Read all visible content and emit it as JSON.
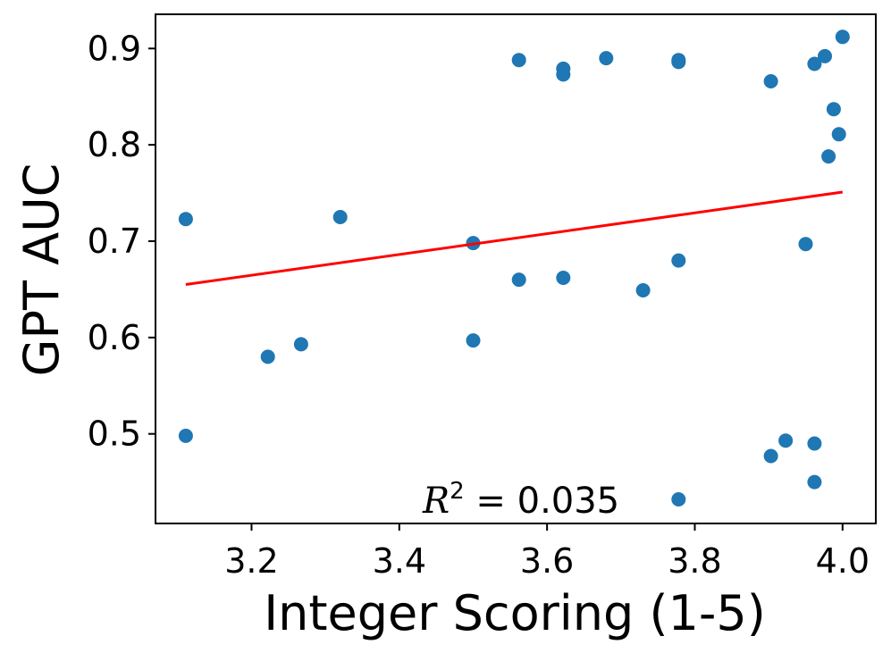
{
  "chart_data": {
    "type": "scatter",
    "xlabel": "Integer Scoring (1-5)",
    "ylabel": "GPT AUC",
    "xlim": [
      3.07,
      4.045
    ],
    "ylim": [
      0.407,
      0.9355
    ],
    "x_ticks": [
      3.2,
      3.4,
      3.6,
      3.8,
      4.0
    ],
    "x_tick_labels": [
      "3.2",
      "3.4",
      "3.6",
      "3.8",
      "4.0"
    ],
    "y_ticks": [
      0.5,
      0.6,
      0.7,
      0.8,
      0.9
    ],
    "y_tick_labels": [
      "0.5",
      "0.6",
      "0.7",
      "0.8",
      "0.9"
    ],
    "grid": false,
    "point_color": "#1f77b4",
    "fit_color": "#ff0000",
    "annotation": {
      "r2_label": "R",
      "r2_sup": "2",
      "r2_text": " = 0.035"
    },
    "fit_line": {
      "x": [
        3.111,
        4.0
      ],
      "y": [
        0.655,
        0.751
      ]
    },
    "x": [
      3.111,
      3.111,
      3.222,
      3.267,
      3.32,
      3.5,
      3.5,
      3.562,
      3.562,
      3.622,
      3.622,
      3.622,
      3.68,
      3.73,
      3.778,
      3.778,
      3.778,
      3.778,
      3.903,
      3.903,
      3.923,
      3.95,
      3.962,
      3.962,
      3.962,
      3.976,
      3.981,
      3.988,
      3.995,
      4.0
    ],
    "y": [
      0.723,
      0.498,
      0.58,
      0.593,
      0.725,
      0.698,
      0.597,
      0.888,
      0.66,
      0.879,
      0.873,
      0.662,
      0.89,
      0.649,
      0.888,
      0.886,
      0.68,
      0.432,
      0.866,
      0.477,
      0.493,
      0.697,
      0.884,
      0.49,
      0.45,
      0.892,
      0.788,
      0.837,
      0.811,
      0.912
    ]
  }
}
